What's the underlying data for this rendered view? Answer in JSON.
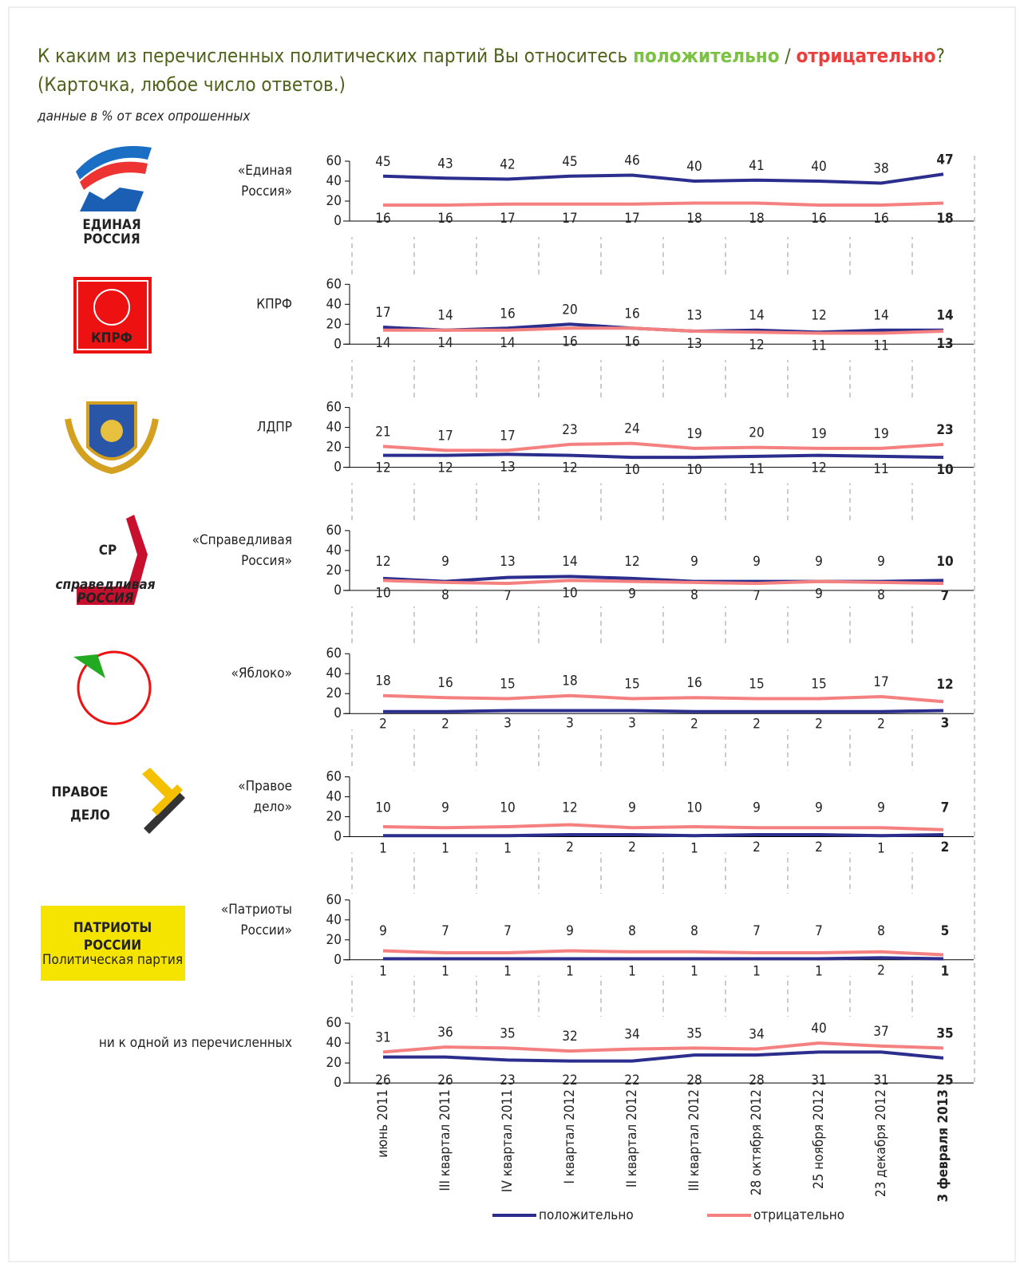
{
  "header": {
    "title": [
      "К каким из перечисленных политических партий Вы относитесь ",
      "положительно",
      " / ",
      "отрицательно",
      "?"
    ],
    "subtitle": "(Карточка, любое число ответов.)",
    "note": "данные в % от всех опрошенных"
  },
  "chart_data": [
    {
      "type": "line",
      "title": [
        "«Единая",
        "Россия»"
      ],
      "logo": [
        "ЕДИНАЯ",
        "РОССИЯ"
      ],
      "ylim": [
        0,
        60
      ],
      "yticks": [
        0,
        20,
        40,
        60
      ],
      "series": [
        {
          "color": "#2b2e8c",
          "values": [
            45,
            43,
            42,
            45,
            46,
            40,
            41,
            40,
            38,
            47
          ]
        },
        {
          "color": "#f48080",
          "values": [
            16,
            16,
            17,
            17,
            17,
            18,
            18,
            16,
            16,
            18
          ]
        }
      ]
    },
    {
      "type": "line",
      "title": [
        "КПРФ"
      ],
      "logo": [
        "КПРФ"
      ],
      "ylim": [
        0,
        60
      ],
      "yticks": [
        0,
        20,
        40,
        60
      ],
      "series": [
        {
          "color": "#2b2e8c",
          "values": [
            17,
            14,
            16,
            20,
            16,
            13,
            14,
            12,
            14,
            14
          ]
        },
        {
          "color": "#f48080",
          "values": [
            14,
            14,
            14,
            16,
            16,
            13,
            12,
            11,
            11,
            13
          ]
        }
      ]
    },
    {
      "type": "line",
      "title": [
        "ЛДПР"
      ],
      "ylim": [
        0,
        60
      ],
      "yticks": [
        0,
        20,
        40,
        60
      ],
      "series": [
        {
          "color": "#2b2e8c",
          "values": [
            12,
            12,
            13,
            12,
            10,
            10,
            11,
            12,
            11,
            10
          ]
        },
        {
          "color": "#f48080",
          "values": [
            21,
            17,
            17,
            23,
            24,
            19,
            20,
            19,
            19,
            23
          ]
        }
      ]
    },
    {
      "type": "line",
      "title": [
        "«Справедливая",
        "Россия»"
      ],
      "logo": [
        "СР",
        "справедливая",
        "РОССИЯ"
      ],
      "ylim": [
        0,
        60
      ],
      "yticks": [
        0,
        20,
        40,
        60
      ],
      "series": [
        {
          "color": "#2b2e8c",
          "values": [
            12,
            9,
            13,
            14,
            12,
            9,
            9,
            9,
            9,
            10
          ]
        },
        {
          "color": "#f48080",
          "values": [
            10,
            8,
            7,
            10,
            9,
            8,
            7,
            9,
            8,
            7
          ]
        }
      ]
    },
    {
      "type": "line",
      "title": [
        "«Яблоко»"
      ],
      "ylim": [
        0,
        60
      ],
      "yticks": [
        0,
        20,
        40,
        60
      ],
      "series": [
        {
          "color": "#2b2e8c",
          "values": [
            2,
            2,
            3,
            3,
            3,
            2,
            2,
            2,
            2,
            3
          ]
        },
        {
          "color": "#f48080",
          "values": [
            18,
            16,
            15,
            18,
            15,
            16,
            15,
            15,
            17,
            12
          ]
        }
      ]
    },
    {
      "type": "line",
      "title": [
        "«Правое",
        "дело»"
      ],
      "logo": [
        "ПРАВОЕ",
        "ДЕЛО"
      ],
      "ylim": [
        0,
        60
      ],
      "yticks": [
        0,
        20,
        40,
        60
      ],
      "series": [
        {
          "color": "#2b2e8c",
          "values": [
            1,
            1,
            1,
            2,
            2,
            1,
            2,
            2,
            1,
            2
          ]
        },
        {
          "color": "#f48080",
          "values": [
            10,
            9,
            10,
            12,
            9,
            10,
            9,
            9,
            9,
            7
          ]
        }
      ]
    },
    {
      "type": "line",
      "title": [
        "«Патриоты",
        "России»"
      ],
      "logo": [
        "ПАТРИОТЫ",
        "РОССИИ",
        "Политическая партия"
      ],
      "ylim": [
        0,
        60
      ],
      "yticks": [
        0,
        20,
        40,
        60
      ],
      "series": [
        {
          "color": "#2b2e8c",
          "values": [
            1,
            1,
            1,
            1,
            1,
            1,
            1,
            1,
            2,
            1
          ]
        },
        {
          "color": "#f48080",
          "values": [
            9,
            7,
            7,
            9,
            8,
            8,
            7,
            7,
            8,
            5
          ]
        }
      ]
    },
    {
      "type": "line",
      "title": [
        "ни к одной из перечисленных"
      ],
      "ylim": [
        0,
        60
      ],
      "yticks": [
        0,
        20,
        40,
        60
      ],
      "categories": [
        "июнь 2011",
        "III квартал 2011",
        "IV квартал 2011",
        "I квартал 2012",
        "II квартал 2012",
        "III квартал 2012",
        "28 октября 2012",
        "25 ноября 2012",
        "23 декабря 2012",
        "3 февраля 2013"
      ],
      "series": [
        {
          "name": "положительно",
          "color": "#2b2e8c",
          "values": [
            26,
            26,
            23,
            22,
            22,
            28,
            28,
            31,
            31,
            25
          ]
        },
        {
          "name": "отрицательно",
          "color": "#f48080",
          "values": [
            31,
            36,
            35,
            32,
            34,
            35,
            34,
            40,
            37,
            35
          ]
        }
      ]
    }
  ]
}
